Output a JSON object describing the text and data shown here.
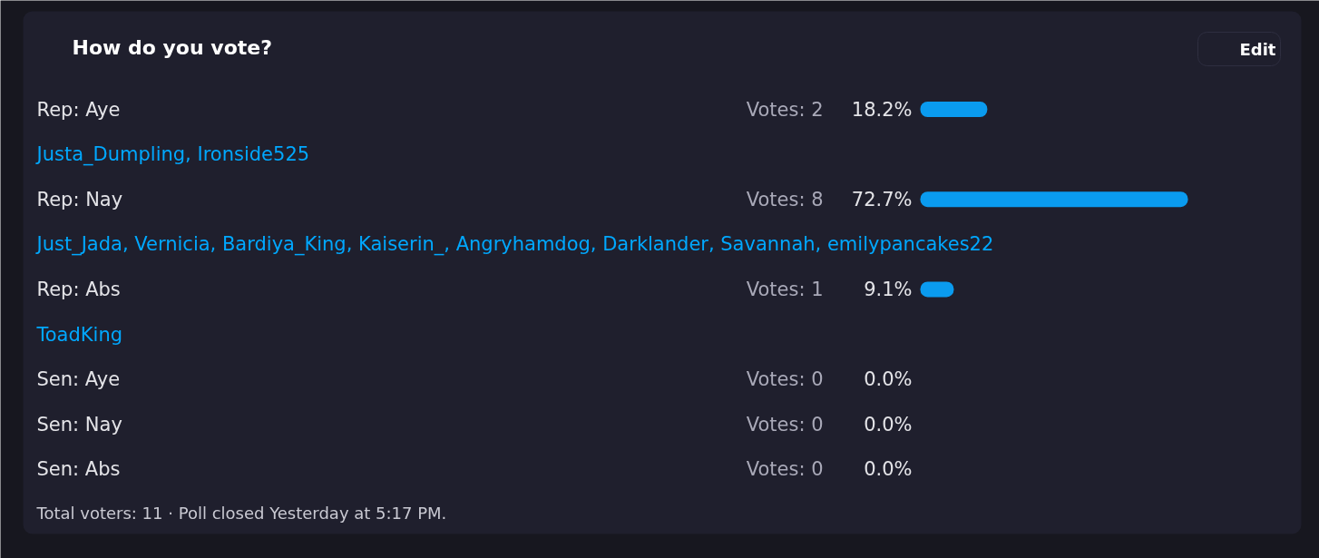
{
  "chart_data": {
    "type": "bar",
    "orientation": "horizontal",
    "title": "How do you vote?",
    "categories": [
      "Rep: Aye",
      "Rep: Nay",
      "Rep: Abs",
      "Sen: Aye",
      "Sen: Nay",
      "Sen: Abs"
    ],
    "values": [
      18.2,
      72.7,
      9.1,
      0,
      0,
      0
    ],
    "color": "#0a9bef",
    "value_labels": [
      "18.2%",
      "72.7%",
      "9.1%",
      "0.0%",
      "0.0%",
      "0.0%"
    ],
    "tick_labels": "y",
    "annotations": [
      "Edit",
      "Votes: 2",
      "Votes: 8",
      "Votes: 1",
      "Votes: 0",
      "Votes: 0",
      "Votes: 0",
      "Justa_Dumpling, Ironside525",
      "Just_Jada, Vernicia, Bardiya_King, Kaiserin_, Angryhamdog, Darklander, Savannah, emilypancakes22",
      "ToadKing",
      "Total voters: 11 · Poll closed Yesterday at 5:17 PM."
    ]
  }
}
